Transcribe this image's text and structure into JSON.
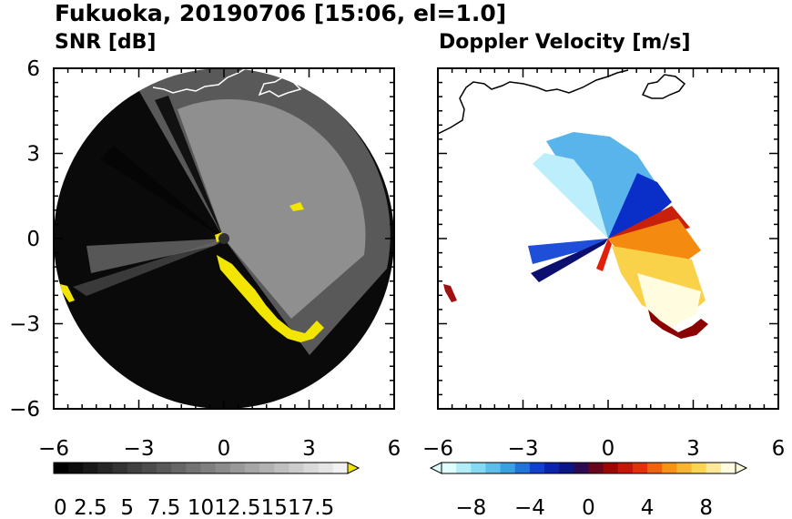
{
  "title": "Fukuoka, 20190706 [15:06, el=1.0]",
  "colors": {
    "frame": "#000000",
    "background": "#ffffff",
    "radar_disk": "#0a0a0a",
    "yellow_overflow": "#f2e600",
    "coastline": "#ffffff"
  },
  "chart_data": [
    {
      "type": "heatmap",
      "title": "SNR [dB]",
      "xlim": [
        -6,
        6
      ],
      "ylim": [
        -6,
        6
      ],
      "x_ticks": [
        "−6",
        "−3",
        "0",
        "3",
        "6"
      ],
      "y_ticks": [
        "6",
        "3",
        "0",
        "−3",
        "−6"
      ],
      "colorbar": {
        "ticks": [
          "0",
          "2.5",
          "5",
          "7.5",
          "10",
          "12.5",
          "15",
          "17.5"
        ],
        "tick_values": [
          0,
          2.5,
          5,
          7.5,
          10,
          12.5,
          15,
          17.5
        ],
        "range": [
          0,
          20
        ],
        "extend": "max",
        "colors": [
          "#000000",
          "#f2f2f2"
        ],
        "over_color": "#f2e600"
      }
    },
    {
      "type": "heatmap",
      "title": "Doppler Velocity [m/s]",
      "xlim": [
        -6,
        6
      ],
      "ylim": [
        -6,
        6
      ],
      "x_ticks": [
        "−6",
        "−3",
        "0",
        "3",
        "6"
      ],
      "colorbar": {
        "ticks": [
          "−8",
          "−4",
          "0",
          "4",
          "8"
        ],
        "tick_values": [
          -8,
          -4,
          0,
          4,
          8
        ],
        "range": [
          -10,
          10
        ],
        "extend": "both",
        "colors": [
          "#e0ffff",
          "#7fd8f2",
          "#2f9be0",
          "#0a2fc8",
          "#0a0f70",
          "#8b0000",
          "#e0200a",
          "#f58a10",
          "#fad24a",
          "#fffce0"
        ],
        "under_color": "#e0ffff",
        "over_color": "#fffce0"
      }
    }
  ]
}
